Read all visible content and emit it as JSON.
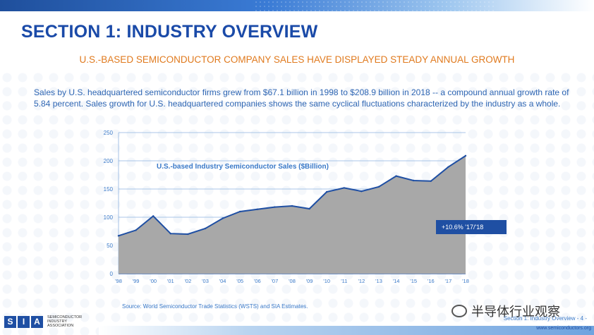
{
  "header": {
    "title": "SECTION 1: INDUSTRY OVERVIEW",
    "subtitle": "U.S.-BASED SEMICONDUCTOR COMPANY SALES HAVE DISPLAYED STEADY ANNUAL GROWTH"
  },
  "description": "Sales by U.S. headquartered semiconductor firms grew from $67.1 billion in 1998 to $208.9 billion in 2018 -- a compound annual growth rate of 5.84 percent. Sales growth for U.S. headquartered companies shows the same cyclical fluctuations characterized by the industry as a whole.",
  "chart_data": {
    "type": "area",
    "title": "U.S.-based Industry Semiconductor Sales ($Billion)",
    "categories": [
      "'98",
      "'99",
      "'00",
      "'01",
      "'02",
      "'03",
      "'04",
      "'05",
      "'06",
      "'07",
      "'08",
      "'09",
      "'10",
      "'11",
      "'12",
      "'13",
      "'14",
      "'15",
      "'16",
      "'17",
      "'18"
    ],
    "values": [
      67.1,
      77,
      102,
      71,
      70,
      80,
      98,
      110,
      114,
      118,
      120,
      115,
      145,
      152,
      146,
      154,
      173,
      165,
      164,
      189,
      208.9
    ],
    "yticks": [
      0,
      50,
      100,
      150,
      200,
      250
    ],
    "ylim": [
      0,
      250
    ],
    "grid": true,
    "fill_color": "#a8a8a8",
    "line_color": "#1f4fa3",
    "annotation": "+10.6% '17/'18"
  },
  "source": "Source: World Semiconductor Trade Statistics (WSTS) and SIA Estimates.",
  "logo": {
    "mark": "SIA",
    "lines": [
      "SEMICONDUCTOR",
      "INDUSTRY",
      "ASSOCIATION"
    ]
  },
  "footer": {
    "section": "Section 1: Industry Overview - 4 -",
    "url": "www.semiconductors.org"
  },
  "watermark": "半导体行业观察"
}
